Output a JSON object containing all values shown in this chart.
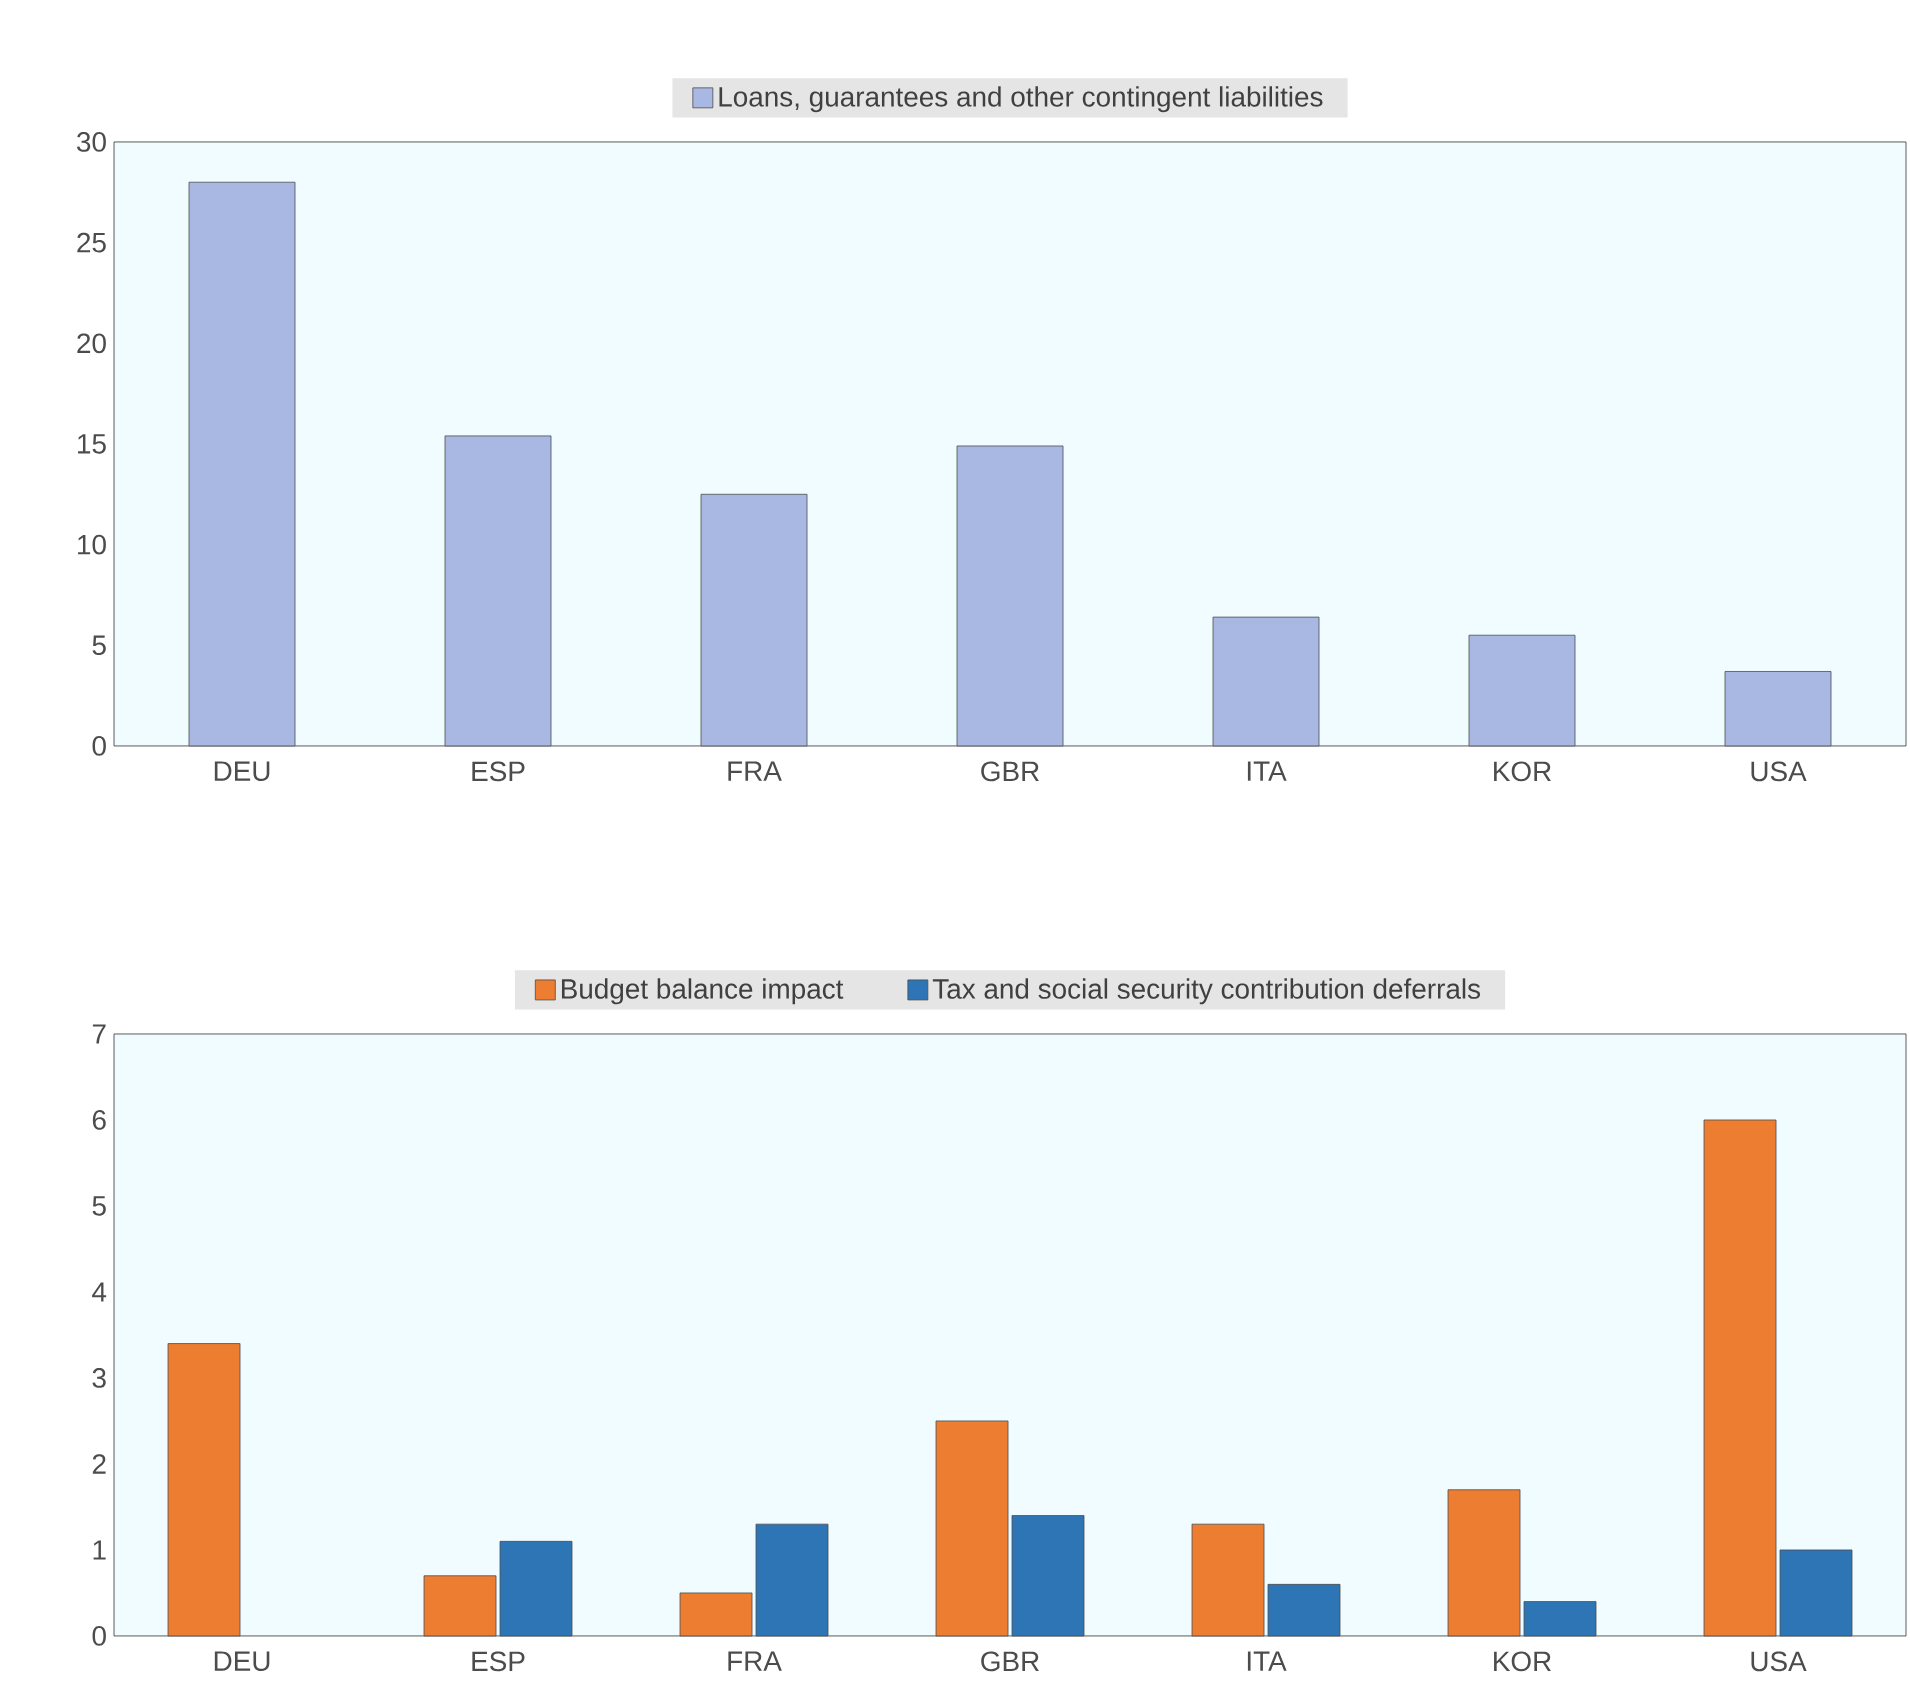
{
  "chart_data": [
    {
      "type": "bar",
      "categories": [
        "DEU",
        "ESP",
        "FRA",
        "GBR",
        "ITA",
        "KOR",
        "USA"
      ],
      "series": [
        {
          "name": "Loans, guarantees and other contingent liabilities",
          "color": "#a9b8e3",
          "values": [
            28.0,
            15.4,
            12.5,
            14.9,
            6.4,
            5.5,
            3.7
          ]
        }
      ],
      "ylim": [
        0,
        30
      ],
      "yticks": [
        0,
        5,
        10,
        15,
        20,
        25,
        30
      ],
      "legend": "top"
    },
    {
      "type": "bar",
      "categories": [
        "DEU",
        "ESP",
        "FRA",
        "GBR",
        "ITA",
        "KOR",
        "USA"
      ],
      "series": [
        {
          "name": "Budget balance impact",
          "color": "#ed7d31",
          "values": [
            3.4,
            0.7,
            0.5,
            2.5,
            1.3,
            1.7,
            6.0
          ]
        },
        {
          "name": "Tax and social security contribution deferrals",
          "color": "#2e75b6",
          "values": [
            null,
            1.1,
            1.3,
            1.4,
            0.6,
            0.4,
            1.0
          ]
        }
      ],
      "ylim": [
        0,
        7
      ],
      "yticks": [
        0,
        1,
        2,
        3,
        4,
        5,
        6,
        7
      ],
      "legend": "top"
    }
  ]
}
